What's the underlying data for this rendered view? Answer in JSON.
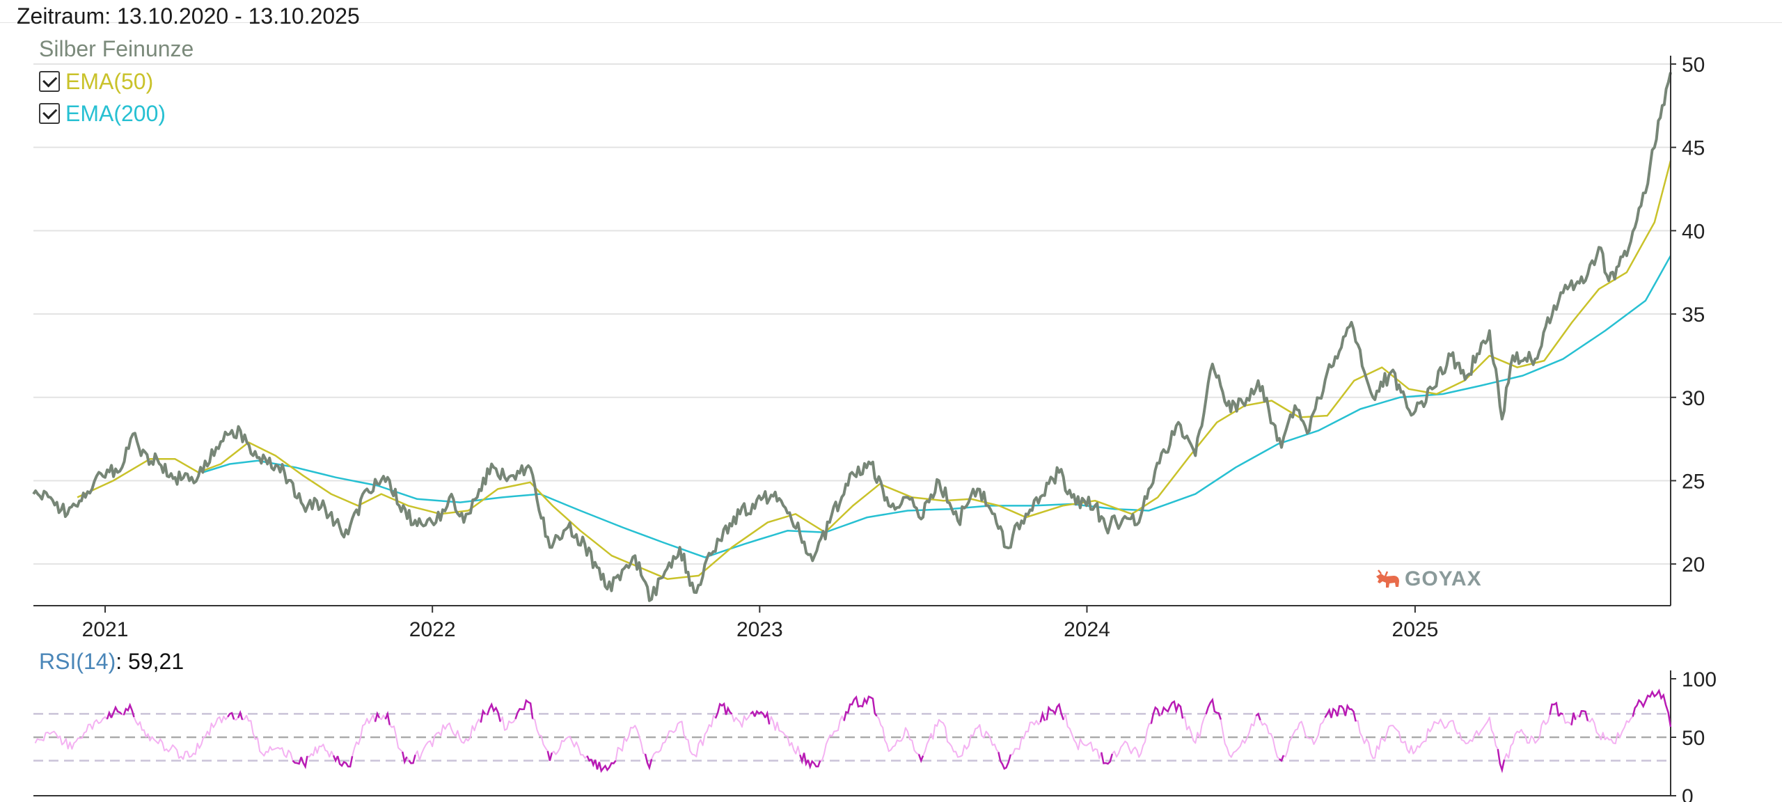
{
  "header": {
    "period_label": "Zeitraum: 13.10.2020 - 13.10.2025"
  },
  "legend": {
    "series_name": "Silber Feinunze",
    "toggles": [
      {
        "label": "EMA(50)",
        "checked": true,
        "color": "#c9c22a"
      },
      {
        "label": "EMA(200)",
        "checked": true,
        "color": "#27c0d2"
      }
    ]
  },
  "rsi": {
    "label": "RSI(14)",
    "value": "59,21"
  },
  "logo": {
    "text": "GOYAX",
    "icon": "bull-icon"
  },
  "colors": {
    "price": "#778677",
    "ema50": "#c9c22a",
    "ema200": "#27c0d2",
    "rsi_normal": "#f4b2f2",
    "rsi_extreme": "#b81bb4",
    "grid": "#e3e3e3",
    "axis": "#333333"
  },
  "chart_data": [
    {
      "type": "line",
      "title": "",
      "xlabel": "",
      "ylabel": "",
      "x_ticks": [
        "2021",
        "2022",
        "2023",
        "2024",
        "2025"
      ],
      "x_range": [
        "2020-10-13",
        "2025-10-13"
      ],
      "ylim": [
        17.5,
        50.5
      ],
      "y_ticks": [
        20,
        25,
        30,
        35,
        40,
        45,
        50
      ],
      "y_axis_position": "right",
      "grid": "horizontal",
      "legend_placement": "top-left",
      "price_points": [
        [
          "2020-10-13",
          24.2
        ],
        [
          "2020-11-01",
          24.0
        ],
        [
          "2020-11-20",
          23.0
        ],
        [
          "2020-12-10",
          24.0
        ],
        [
          "2020-12-25",
          25.5
        ],
        [
          "2021-01-15",
          25.5
        ],
        [
          "2021-02-01",
          27.8
        ],
        [
          "2021-02-10",
          26.5
        ],
        [
          "2021-02-28",
          26.3
        ],
        [
          "2021-03-20",
          25.2
        ],
        [
          "2021-04-05",
          25.0
        ],
        [
          "2021-04-20",
          25.5
        ],
        [
          "2021-05-05",
          27.0
        ],
        [
          "2021-05-20",
          27.8
        ],
        [
          "2021-06-01",
          28.0
        ],
        [
          "2021-06-15",
          26.5
        ],
        [
          "2021-07-01",
          26.0
        ],
        [
          "2021-07-20",
          25.5
        ],
        [
          "2021-08-10",
          23.5
        ],
        [
          "2021-08-25",
          23.8
        ],
        [
          "2021-09-15",
          22.5
        ],
        [
          "2021-09-29",
          21.8
        ],
        [
          "2021-10-20",
          24.5
        ],
        [
          "2021-11-12",
          25.2
        ],
        [
          "2021-11-25",
          23.5
        ],
        [
          "2021-12-15",
          22.3
        ],
        [
          "2022-01-05",
          22.5
        ],
        [
          "2022-01-20",
          24.0
        ],
        [
          "2022-02-05",
          22.5
        ],
        [
          "2022-02-20",
          24.0
        ],
        [
          "2022-03-08",
          26.0
        ],
        [
          "2022-03-25",
          25.0
        ],
        [
          "2022-04-18",
          25.9
        ],
        [
          "2022-05-12",
          21.0
        ],
        [
          "2022-06-01",
          22.2
        ],
        [
          "2022-06-20",
          21.2
        ],
        [
          "2022-07-15",
          18.5
        ],
        [
          "2022-08-15",
          20.5
        ],
        [
          "2022-08-31",
          17.8
        ],
        [
          "2022-09-15",
          19.2
        ],
        [
          "2022-10-04",
          21.0
        ],
        [
          "2022-10-20",
          18.3
        ],
        [
          "2022-11-15",
          21.5
        ],
        [
          "2022-12-10",
          23.0
        ],
        [
          "2023-01-05",
          24.0
        ],
        [
          "2023-01-25",
          23.8
        ],
        [
          "2023-02-15",
          21.8
        ],
        [
          "2023-03-01",
          20.2
        ],
        [
          "2023-03-20",
          22.5
        ],
        [
          "2023-04-14",
          25.5
        ],
        [
          "2023-05-05",
          26.0
        ],
        [
          "2023-05-25",
          23.5
        ],
        [
          "2023-06-15",
          24.0
        ],
        [
          "2023-06-30",
          22.7
        ],
        [
          "2023-07-20",
          25.0
        ],
        [
          "2023-08-10",
          22.6
        ],
        [
          "2023-09-01",
          24.5
        ],
        [
          "2023-09-20",
          23.0
        ],
        [
          "2023-10-03",
          21.0
        ],
        [
          "2023-10-25",
          23.0
        ],
        [
          "2023-12-01",
          25.5
        ],
        [
          "2023-12-15",
          24.0
        ],
        [
          "2024-01-10",
          23.5
        ],
        [
          "2024-01-22",
          22.2
        ],
        [
          "2024-02-10",
          22.7
        ],
        [
          "2024-02-28",
          22.5
        ],
        [
          "2024-03-10",
          24.5
        ],
        [
          "2024-04-12",
          28.5
        ],
        [
          "2024-05-01",
          26.5
        ],
        [
          "2024-05-20",
          32.0
        ],
        [
          "2024-06-05",
          29.5
        ],
        [
          "2024-06-25",
          29.5
        ],
        [
          "2024-07-10",
          31.0
        ],
        [
          "2024-08-05",
          27.0
        ],
        [
          "2024-08-20",
          29.5
        ],
        [
          "2024-09-05",
          28.0
        ],
        [
          "2024-09-25",
          31.5
        ],
        [
          "2024-10-22",
          34.5
        ],
        [
          "2024-11-15",
          30.0
        ],
        [
          "2024-12-05",
          31.5
        ],
        [
          "2024-12-30",
          29.0
        ],
        [
          "2025-01-20",
          30.5
        ],
        [
          "2025-02-10",
          32.5
        ],
        [
          "2025-02-28",
          31.3
        ],
        [
          "2025-03-25",
          34.0
        ],
        [
          "2025-04-08",
          28.7
        ],
        [
          "2025-04-20",
          32.5
        ],
        [
          "2025-05-15",
          32.3
        ],
        [
          "2025-06-05",
          35.5
        ],
        [
          "2025-06-20",
          36.5
        ],
        [
          "2025-07-10",
          37.0
        ],
        [
          "2025-07-25",
          39.0
        ],
        [
          "2025-08-05",
          37.0
        ],
        [
          "2025-08-25",
          38.5
        ],
        [
          "2025-09-10",
          41.5
        ],
        [
          "2025-09-25",
          45.0
        ],
        [
          "2025-10-08",
          48.5
        ],
        [
          "2025-10-13",
          49.5
        ]
      ],
      "ema50_points": [
        [
          "2020-12-01",
          24.0
        ],
        [
          "2021-01-10",
          25.0
        ],
        [
          "2021-02-20",
          26.3
        ],
        [
          "2021-03-20",
          26.3
        ],
        [
          "2021-04-15",
          25.5
        ],
        [
          "2021-05-10",
          26.0
        ],
        [
          "2021-06-10",
          27.3
        ],
        [
          "2021-07-10",
          26.5
        ],
        [
          "2021-08-10",
          25.3
        ],
        [
          "2021-09-10",
          24.2
        ],
        [
          "2021-10-10",
          23.5
        ],
        [
          "2021-11-05",
          24.2
        ],
        [
          "2021-12-05",
          23.5
        ],
        [
          "2022-01-10",
          23.0
        ],
        [
          "2022-02-10",
          23.2
        ],
        [
          "2022-03-15",
          24.5
        ],
        [
          "2022-04-20",
          24.9
        ],
        [
          "2022-05-15",
          23.5
        ],
        [
          "2022-06-15",
          22.0
        ],
        [
          "2022-07-20",
          20.5
        ],
        [
          "2022-08-20",
          19.8
        ],
        [
          "2022-09-20",
          19.1
        ],
        [
          "2022-10-25",
          19.3
        ],
        [
          "2022-12-01",
          21.0
        ],
        [
          "2023-01-10",
          22.5
        ],
        [
          "2023-02-10",
          23.0
        ],
        [
          "2023-03-15",
          21.9
        ],
        [
          "2023-04-15",
          23.5
        ],
        [
          "2023-05-15",
          24.8
        ],
        [
          "2023-06-20",
          24.0
        ],
        [
          "2023-07-25",
          23.8
        ],
        [
          "2023-08-25",
          23.9
        ],
        [
          "2023-09-25",
          23.5
        ],
        [
          "2023-10-25",
          22.8
        ],
        [
          "2023-12-05",
          23.5
        ],
        [
          "2024-01-10",
          23.8
        ],
        [
          "2024-02-20",
          23.0
        ],
        [
          "2024-03-20",
          24.0
        ],
        [
          "2024-04-25",
          26.5
        ],
        [
          "2024-05-25",
          28.5
        ],
        [
          "2024-06-25",
          29.5
        ],
        [
          "2024-07-25",
          29.8
        ],
        [
          "2024-08-25",
          28.8
        ],
        [
          "2024-09-25",
          28.9
        ],
        [
          "2024-10-25",
          31.0
        ],
        [
          "2024-11-25",
          31.8
        ],
        [
          "2024-12-25",
          30.5
        ],
        [
          "2025-01-25",
          30.2
        ],
        [
          "2025-02-25",
          31.0
        ],
        [
          "2025-03-25",
          32.5
        ],
        [
          "2025-04-25",
          31.8
        ],
        [
          "2025-05-25",
          32.2
        ],
        [
          "2025-06-25",
          34.5
        ],
        [
          "2025-07-25",
          36.5
        ],
        [
          "2025-08-25",
          37.5
        ],
        [
          "2025-09-25",
          40.5
        ],
        [
          "2025-10-13",
          44.2
        ]
      ],
      "ema200_points": [
        [
          "2021-04-20",
          25.5
        ],
        [
          "2021-05-20",
          26.0
        ],
        [
          "2021-06-20",
          26.2
        ],
        [
          "2021-08-01",
          25.8
        ],
        [
          "2021-09-15",
          25.2
        ],
        [
          "2021-11-01",
          24.7
        ],
        [
          "2021-12-15",
          23.9
        ],
        [
          "2022-02-01",
          23.7
        ],
        [
          "2022-03-20",
          24.0
        ],
        [
          "2022-05-01",
          24.2
        ],
        [
          "2022-06-15",
          23.2
        ],
        [
          "2022-08-01",
          22.2
        ],
        [
          "2022-09-15",
          21.3
        ],
        [
          "2022-11-01",
          20.4
        ],
        [
          "2022-12-15",
          21.2
        ],
        [
          "2023-02-01",
          22.0
        ],
        [
          "2023-03-15",
          21.9
        ],
        [
          "2023-05-01",
          22.8
        ],
        [
          "2023-06-15",
          23.2
        ],
        [
          "2023-08-01",
          23.3
        ],
        [
          "2023-09-15",
          23.5
        ],
        [
          "2023-11-01",
          23.5
        ],
        [
          "2023-12-15",
          23.6
        ],
        [
          "2024-02-01",
          23.3
        ],
        [
          "2024-03-10",
          23.2
        ],
        [
          "2024-05-01",
          24.2
        ],
        [
          "2024-06-15",
          25.8
        ],
        [
          "2024-08-01",
          27.2
        ],
        [
          "2024-09-15",
          28.0
        ],
        [
          "2024-11-01",
          29.3
        ],
        [
          "2024-12-15",
          30.0
        ],
        [
          "2025-02-01",
          30.2
        ],
        [
          "2025-03-15",
          30.7
        ],
        [
          "2025-05-01",
          31.3
        ],
        [
          "2025-06-15",
          32.3
        ],
        [
          "2025-08-01",
          34.0
        ],
        [
          "2025-09-15",
          35.8
        ],
        [
          "2025-10-13",
          38.5
        ]
      ]
    },
    {
      "type": "line",
      "title": "RSI(14)",
      "x_range": [
        "2020-10-13",
        "2025-10-13"
      ],
      "ylim": [
        0,
        100
      ],
      "y_ticks": [
        0,
        50,
        100
      ],
      "y_axis_position": "right",
      "reference_lines": [
        30,
        50,
        70
      ],
      "last_value": 59.21,
      "rsi_points": [
        [
          "2020-10-15",
          45
        ],
        [
          "2020-11-05",
          55
        ],
        [
          "2020-11-25",
          40
        ],
        [
          "2020-12-20",
          63
        ],
        [
          "2021-01-15",
          72
        ],
        [
          "2021-01-31",
          73
        ],
        [
          "2021-02-20",
          47
        ],
        [
          "2021-03-15",
          40
        ],
        [
          "2021-04-05",
          33
        ],
        [
          "2021-04-25",
          55
        ],
        [
          "2021-05-20",
          70
        ],
        [
          "2021-06-10",
          64
        ],
        [
          "2021-06-25",
          36
        ],
        [
          "2021-07-15",
          40
        ],
        [
          "2021-08-10",
          28
        ],
        [
          "2021-08-30",
          42
        ],
        [
          "2021-09-15",
          30
        ],
        [
          "2021-09-29",
          25
        ],
        [
          "2021-10-20",
          66
        ],
        [
          "2021-11-12",
          70
        ],
        [
          "2021-12-01",
          29
        ],
        [
          "2021-12-20",
          36
        ],
        [
          "2022-01-20",
          62
        ],
        [
          "2022-02-05",
          45
        ],
        [
          "2022-03-08",
          78
        ],
        [
          "2022-03-25",
          57
        ],
        [
          "2022-04-18",
          80
        ],
        [
          "2022-05-12",
          30
        ],
        [
          "2022-06-01",
          50
        ],
        [
          "2022-06-25",
          30
        ],
        [
          "2022-07-15",
          22
        ],
        [
          "2022-08-15",
          60
        ],
        [
          "2022-08-31",
          24
        ],
        [
          "2022-09-15",
          45
        ],
        [
          "2022-10-04",
          63
        ],
        [
          "2022-10-20",
          35
        ],
        [
          "2022-11-20",
          77
        ],
        [
          "2022-12-10",
          63
        ],
        [
          "2023-01-05",
          70
        ],
        [
          "2023-01-25",
          55
        ],
        [
          "2023-02-15",
          35
        ],
        [
          "2023-03-05",
          25
        ],
        [
          "2023-03-25",
          55
        ],
        [
          "2023-04-14",
          78
        ],
        [
          "2023-05-05",
          84
        ],
        [
          "2023-05-25",
          38
        ],
        [
          "2023-06-15",
          55
        ],
        [
          "2023-06-30",
          30
        ],
        [
          "2023-07-20",
          65
        ],
        [
          "2023-08-10",
          33
        ],
        [
          "2023-09-01",
          58
        ],
        [
          "2023-09-20",
          44
        ],
        [
          "2023-10-03",
          24
        ],
        [
          "2023-10-25",
          55
        ],
        [
          "2023-12-01",
          78
        ],
        [
          "2023-12-20",
          45
        ],
        [
          "2024-01-10",
          40
        ],
        [
          "2024-01-22",
          28
        ],
        [
          "2024-02-15",
          45
        ],
        [
          "2024-02-28",
          33
        ],
        [
          "2024-03-15",
          70
        ],
        [
          "2024-04-12",
          78
        ],
        [
          "2024-05-01",
          45
        ],
        [
          "2024-05-20",
          82
        ],
        [
          "2024-06-10",
          33
        ],
        [
          "2024-06-25",
          45
        ],
        [
          "2024-07-10",
          70
        ],
        [
          "2024-08-05",
          30
        ],
        [
          "2024-08-25",
          62
        ],
        [
          "2024-09-10",
          44
        ],
        [
          "2024-09-25",
          70
        ],
        [
          "2024-10-22",
          74
        ],
        [
          "2024-11-15",
          32
        ],
        [
          "2024-12-05",
          60
        ],
        [
          "2024-12-30",
          36
        ],
        [
          "2025-01-20",
          58
        ],
        [
          "2025-02-10",
          64
        ],
        [
          "2025-03-01",
          45
        ],
        [
          "2025-03-25",
          67
        ],
        [
          "2025-04-08",
          22
        ],
        [
          "2025-04-25",
          55
        ],
        [
          "2025-05-15",
          45
        ],
        [
          "2025-06-05",
          78
        ],
        [
          "2025-06-20",
          63
        ],
        [
          "2025-07-10",
          72
        ],
        [
          "2025-07-25",
          52
        ],
        [
          "2025-08-10",
          45
        ],
        [
          "2025-08-25",
          64
        ],
        [
          "2025-09-10",
          80
        ],
        [
          "2025-09-25",
          85
        ],
        [
          "2025-10-05",
          86
        ],
        [
          "2025-10-13",
          59
        ]
      ]
    }
  ]
}
